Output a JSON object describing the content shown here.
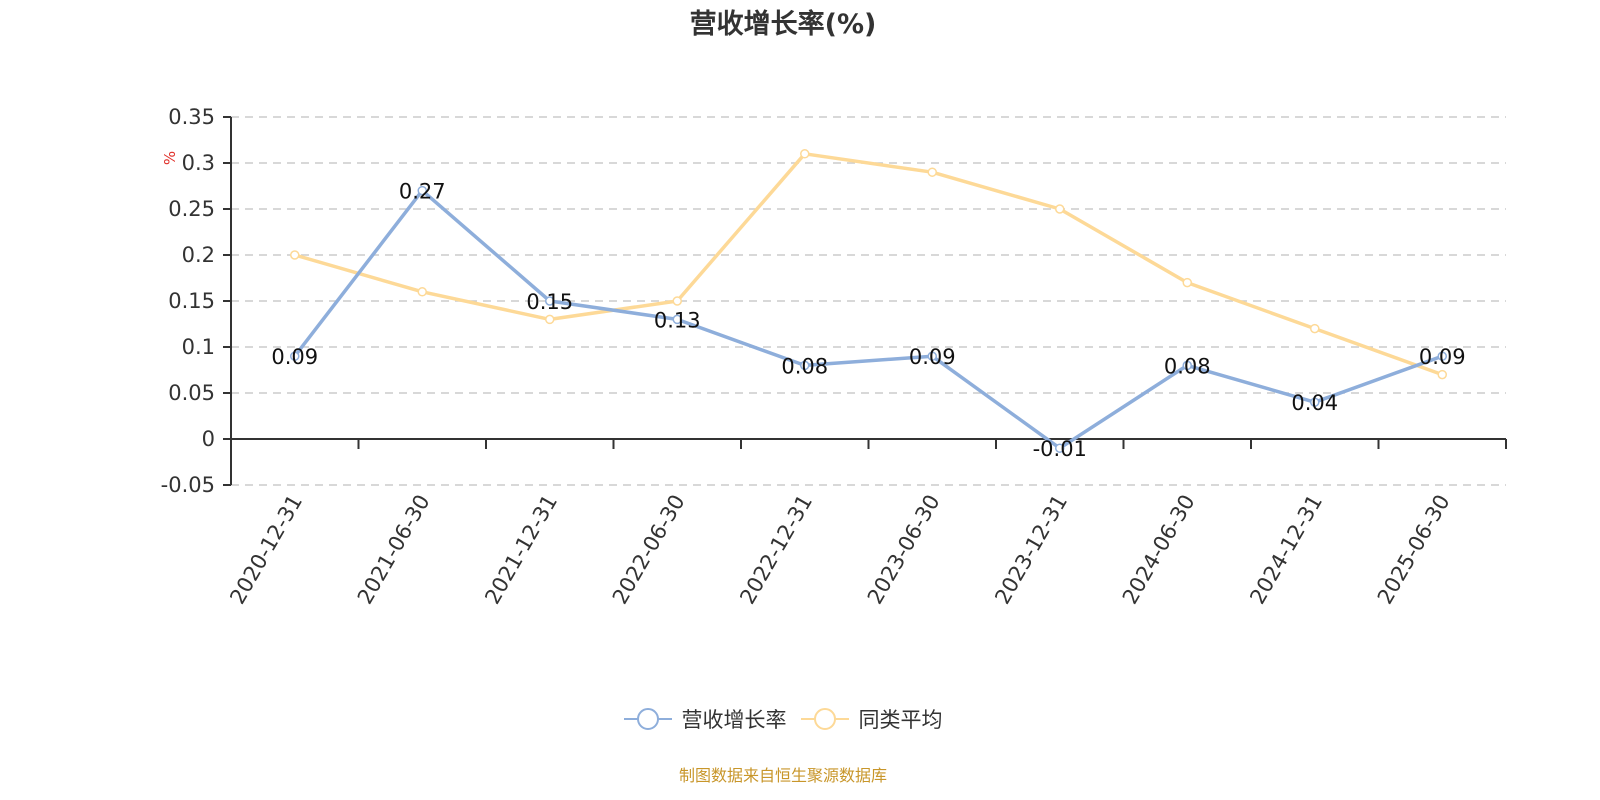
{
  "chart_data": {
    "type": "line",
    "title": "营收增长率(%)",
    "xlabel": "",
    "ylabel": "%",
    "ylim": [
      -0.05,
      0.35
    ],
    "yticks": [
      "0.35",
      "0.3",
      "0.25",
      "0.2",
      "0.15",
      "0.1",
      "0.05",
      "0",
      "-0.05"
    ],
    "grid": true,
    "legend_position": "bottom",
    "categories": [
      "2020-12-31",
      "2021-06-30",
      "2021-12-31",
      "2022-06-30",
      "2022-12-31",
      "2023-06-30",
      "2023-12-31",
      "2024-06-30",
      "2024-12-31",
      "2025-06-30"
    ],
    "series": [
      {
        "name": "营收增长率",
        "color": "#8eaedb",
        "values": [
          0.09,
          0.27,
          0.15,
          0.13,
          0.08,
          0.09,
          -0.01,
          0.08,
          0.04,
          0.09
        ],
        "labels": [
          "0.09",
          "0.27",
          "0.15",
          "0.13",
          "0.08",
          "0.09",
          "-0.01",
          "0.08",
          "0.04",
          "0.09"
        ]
      },
      {
        "name": "同类平均",
        "color": "#fdd997",
        "values": [
          0.2,
          0.16,
          0.13,
          0.15,
          0.31,
          0.29,
          0.25,
          0.17,
          0.12,
          0.07
        ]
      }
    ]
  },
  "legend": {
    "items": [
      {
        "label": "营收增长率",
        "color": "#8eaedb"
      },
      {
        "label": "同类平均",
        "color": "#fdd997"
      }
    ]
  },
  "footer": {
    "source": "制图数据来自恒生聚源数据库"
  }
}
